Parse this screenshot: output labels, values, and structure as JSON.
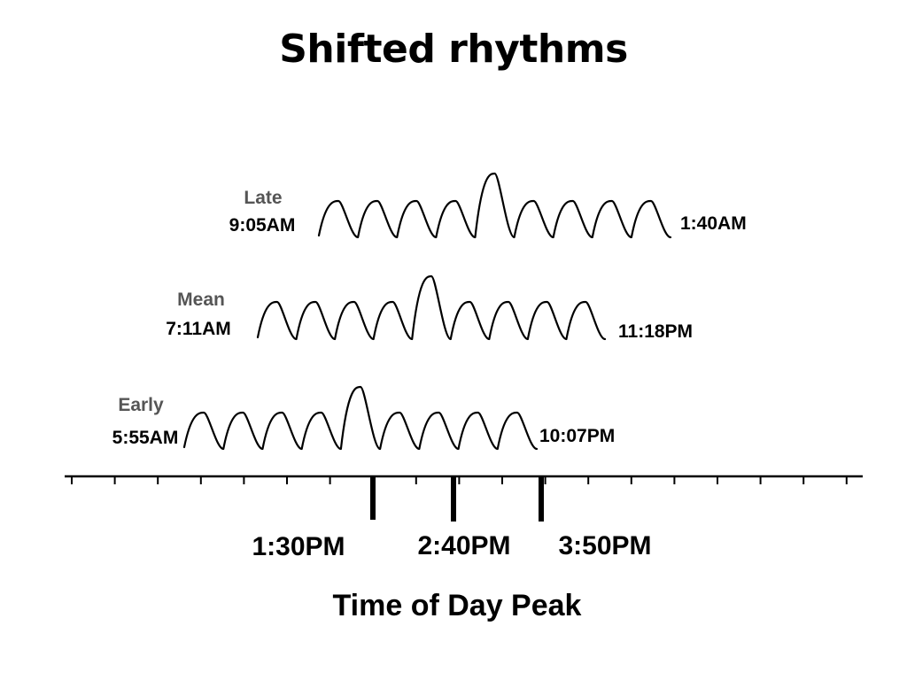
{
  "title": "Shifted rhythms",
  "rows": [
    {
      "name": "Late",
      "start_time": "9:05AM",
      "end_time": "1:40AM"
    },
    {
      "name": "Mean",
      "start_time": "7:11AM",
      "end_time": "11:18PM"
    },
    {
      "name": "Early",
      "start_time": "5:55AM",
      "end_time": "10:07PM"
    }
  ],
  "peaks": [
    "1:30PM",
    "2:40PM",
    "3:50PM"
  ],
  "axis_title": "Time of Day Peak"
}
